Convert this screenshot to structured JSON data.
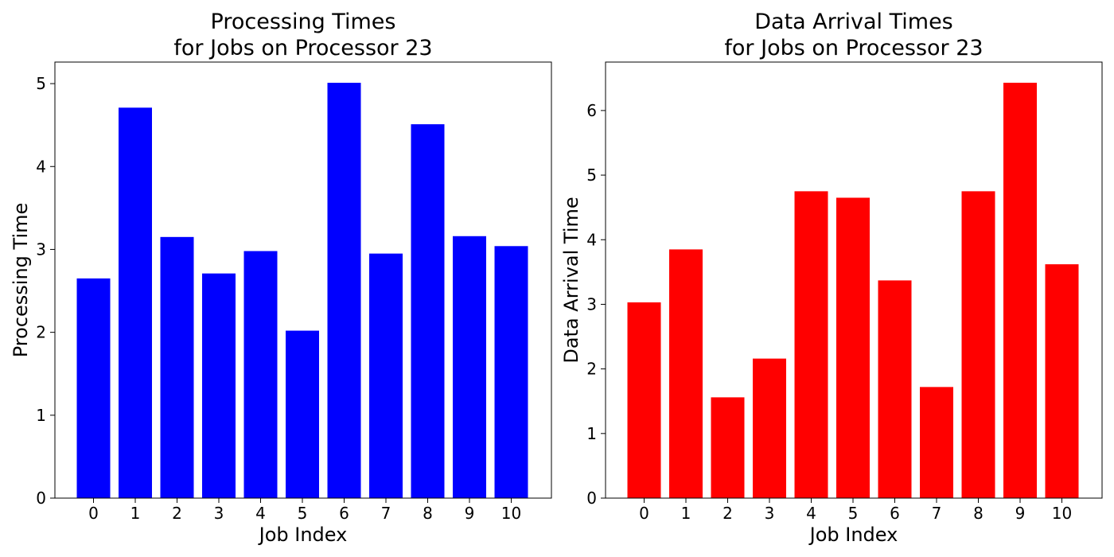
{
  "chart_data": [
    {
      "type": "bar",
      "title": [
        "Processing Times",
        "for Jobs on Processor 23"
      ],
      "xlabel": "Job Index",
      "ylabel": "Processing Time",
      "color": "#0000ff",
      "categories": [
        "0",
        "1",
        "2",
        "3",
        "4",
        "5",
        "6",
        "7",
        "8",
        "9",
        "10"
      ],
      "values": [
        2.65,
        4.71,
        3.15,
        2.71,
        2.98,
        2.02,
        5.01,
        2.95,
        4.51,
        3.16,
        3.04
      ],
      "yticks": [
        0,
        1,
        2,
        3,
        4,
        5
      ],
      "ylim": [
        0,
        5.26
      ],
      "grid": false,
      "legend": false
    },
    {
      "type": "bar",
      "title": [
        "Data Arrival Times",
        "for Jobs on Processor 23"
      ],
      "xlabel": "Job Index",
      "ylabel": "Data Arrival Time",
      "color": "#ff0000",
      "categories": [
        "0",
        "1",
        "2",
        "3",
        "4",
        "5",
        "6",
        "7",
        "8",
        "9",
        "10"
      ],
      "values": [
        3.03,
        3.85,
        1.56,
        2.16,
        4.75,
        4.65,
        3.37,
        1.72,
        4.75,
        6.43,
        3.62
      ],
      "yticks": [
        0,
        1,
        2,
        3,
        4,
        5,
        6
      ],
      "ylim": [
        0,
        6.75
      ],
      "grid": false,
      "legend": false
    }
  ]
}
